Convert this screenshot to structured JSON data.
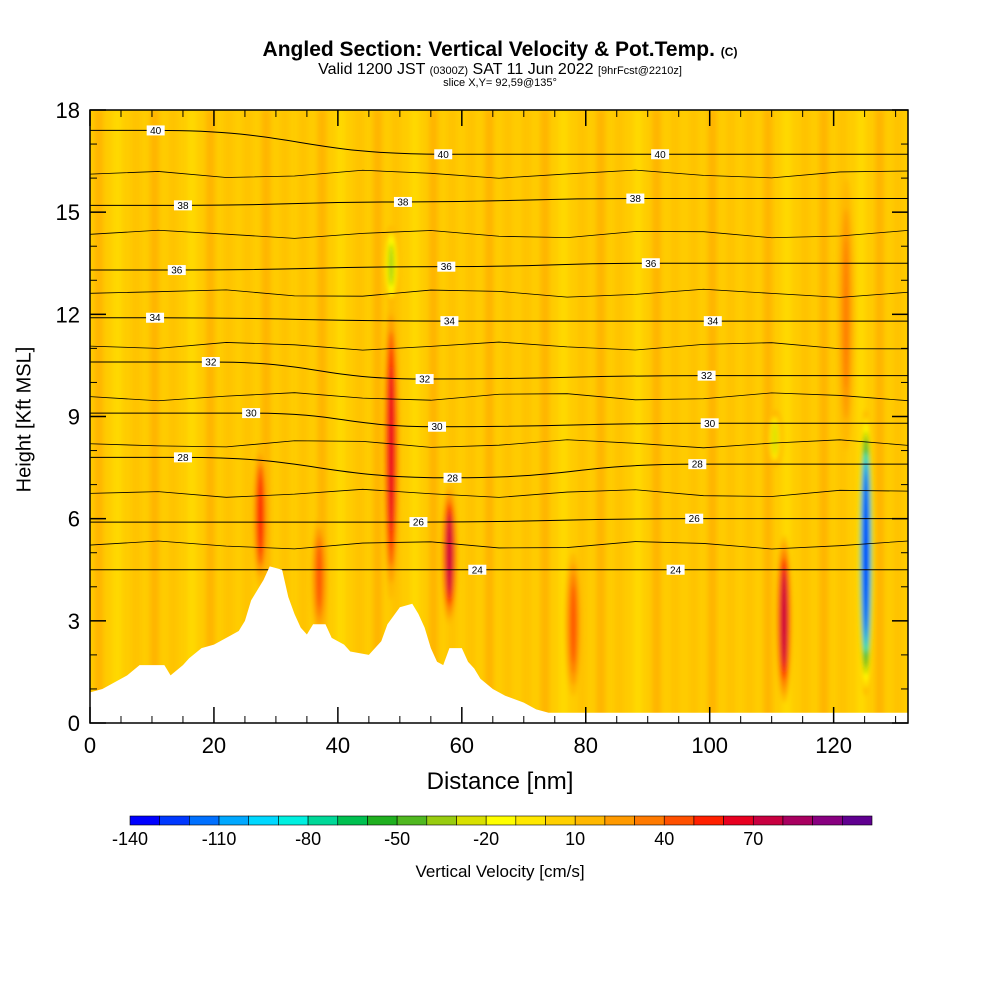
{
  "header": {
    "title": "Angled Section: Vertical Velocity & Pot.Temp.",
    "title_mark": "(C)",
    "subtitle_valid": "Valid 1200 JST",
    "subtitle_z": "(0300Z)",
    "subtitle_date": "SAT 11 Jun 2022",
    "subtitle_fcst": "[9hrFcst@2210z]",
    "slice": "slice X,Y= 92,59@135°"
  },
  "chart_data": {
    "type": "heatmap",
    "xlabel": "Distance [nm]",
    "ylabel": "Height [Kft MSL]",
    "xlim": [
      0,
      132
    ],
    "ylim": [
      0,
      18
    ],
    "x_ticks": [
      "0",
      "20",
      "40",
      "60",
      "80",
      "100",
      "120"
    ],
    "y_ticks": [
      "0",
      "3",
      "6",
      "9",
      "12",
      "15",
      "18"
    ],
    "colorbar": {
      "label": "Vertical Velocity [cm/s]",
      "tick_labels": [
        "-140",
        "-110",
        "-80",
        "-50",
        "-20",
        "10",
        "40",
        "70"
      ],
      "colors": [
        "#0000ff",
        "#0038ff",
        "#0070ff",
        "#00a8ff",
        "#00d8ff",
        "#00f0e0",
        "#00d898",
        "#00c050",
        "#20b020",
        "#50b820",
        "#98cc10",
        "#d8e000",
        "#ffff00",
        "#ffe800",
        "#ffd000",
        "#ffb800",
        "#ff9a00",
        "#ff7a00",
        "#ff5000",
        "#ff2000",
        "#e80020",
        "#c80040",
        "#a80060",
        "#880080",
        "#600090"
      ]
    },
    "updrafts": [
      {
        "x": 27.5,
        "bottom": 4.0,
        "top": 8.2,
        "peak": 50
      },
      {
        "x": 37.0,
        "bottom": 2.6,
        "top": 6.0,
        "peak": 40
      },
      {
        "x": 48.6,
        "bottom": 3.6,
        "top": 12.5,
        "peak": 60
      },
      {
        "x": 58.0,
        "bottom": 2.9,
        "top": 7.0,
        "peak": 70
      },
      {
        "x": 78.0,
        "bottom": 0.8,
        "top": 5.0,
        "peak": 40
      },
      {
        "x": 112.0,
        "bottom": 0.6,
        "top": 5.5,
        "peak": 70
      },
      {
        "x": 122.0,
        "bottom": 8.0,
        "top": 16.0,
        "peak": 30
      }
    ],
    "downdrafts": [
      {
        "x": 48.6,
        "bottom": 12.3,
        "top": 14.6,
        "peak": -40
      },
      {
        "x": 110.5,
        "bottom": 7.5,
        "top": 9.2,
        "peak": -30
      },
      {
        "x": 125.2,
        "bottom": 0.8,
        "top": 9.2,
        "peak": -140
      }
    ],
    "isentrope_labels": [
      {
        "text": "40",
        "x": 10.6,
        "y": 17.4
      },
      {
        "text": "40",
        "x": 57.0,
        "y": 16.7
      },
      {
        "text": "40",
        "x": 92.0,
        "y": 16.7
      },
      {
        "text": "38",
        "x": 15.0,
        "y": 15.2
      },
      {
        "text": "38",
        "x": 50.5,
        "y": 15.3
      },
      {
        "text": "38",
        "x": 88.0,
        "y": 15.4
      },
      {
        "text": "36",
        "x": 14.0,
        "y": 13.3
      },
      {
        "text": "36",
        "x": 57.5,
        "y": 13.4
      },
      {
        "text": "36",
        "x": 90.5,
        "y": 13.5
      },
      {
        "text": "34",
        "x": 10.5,
        "y": 11.9
      },
      {
        "text": "34",
        "x": 58.0,
        "y": 11.8
      },
      {
        "text": "34",
        "x": 100.5,
        "y": 11.8
      },
      {
        "text": "32",
        "x": 19.5,
        "y": 10.6
      },
      {
        "text": "32",
        "x": 54.0,
        "y": 10.1
      },
      {
        "text": "32",
        "x": 99.5,
        "y": 10.2
      },
      {
        "text": "30",
        "x": 26.0,
        "y": 9.1
      },
      {
        "text": "30",
        "x": 56.0,
        "y": 8.7
      },
      {
        "text": "30",
        "x": 100.0,
        "y": 8.8
      },
      {
        "text": "28",
        "x": 15.0,
        "y": 7.8
      },
      {
        "text": "28",
        "x": 58.5,
        "y": 7.2
      },
      {
        "text": "28",
        "x": 98.0,
        "y": 7.6
      },
      {
        "text": "26",
        "x": 53.0,
        "y": 5.9
      },
      {
        "text": "26",
        "x": 97.5,
        "y": 6.0
      },
      {
        "text": "24",
        "x": 62.5,
        "y": 4.5
      },
      {
        "text": "24",
        "x": 94.5,
        "y": 4.5
      }
    ],
    "terrain_height": [
      [
        0,
        0.9
      ],
      [
        2,
        1.0
      ],
      [
        6,
        1.4
      ],
      [
        8,
        1.7
      ],
      [
        12,
        1.7
      ],
      [
        13,
        1.4
      ],
      [
        15,
        1.7
      ],
      [
        16,
        1.9
      ],
      [
        18,
        2.2
      ],
      [
        20,
        2.3
      ],
      [
        24,
        2.7
      ],
      [
        25,
        3.0
      ],
      [
        26,
        3.6
      ],
      [
        28,
        4.2
      ],
      [
        29,
        4.6
      ],
      [
        31,
        4.5
      ],
      [
        32,
        3.7
      ],
      [
        33,
        3.2
      ],
      [
        34,
        2.8
      ],
      [
        35,
        2.6
      ],
      [
        36,
        2.9
      ],
      [
        38,
        2.9
      ],
      [
        39,
        2.5
      ],
      [
        41,
        2.3
      ],
      [
        42,
        2.1
      ],
      [
        45,
        2.0
      ],
      [
        47,
        2.4
      ],
      [
        48,
        2.9
      ],
      [
        50,
        3.4
      ],
      [
        52,
        3.5
      ],
      [
        53,
        3.2
      ],
      [
        54,
        2.8
      ],
      [
        55,
        2.2
      ],
      [
        56,
        1.8
      ],
      [
        57,
        1.7
      ],
      [
        58,
        2.2
      ],
      [
        60,
        2.2
      ],
      [
        61,
        1.8
      ],
      [
        62,
        1.6
      ],
      [
        63,
        1.3
      ],
      [
        65,
        1.0
      ],
      [
        67,
        0.8
      ],
      [
        70,
        0.6
      ],
      [
        72,
        0.4
      ],
      [
        74,
        0.3
      ],
      [
        132,
        0.3
      ]
    ]
  }
}
